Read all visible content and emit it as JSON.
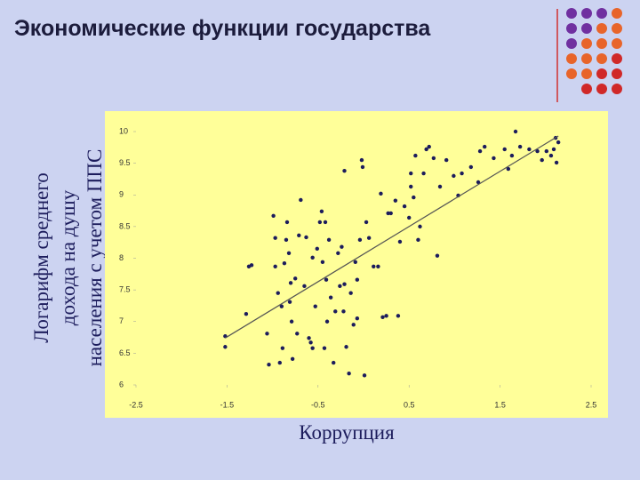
{
  "chart_data": {
    "type": "scatter",
    "title": "Экономические функции государства",
    "xlabel": "Коррупция",
    "ylabel": [
      "Логарифм среднего",
      "дохода на душу",
      "населения с учетом ППС"
    ],
    "color": "#1c1c5c",
    "xlim": [
      -2.5,
      2.5
    ],
    "xticks": [
      -2.5,
      -1.5,
      -0.5,
      0.5,
      1.5,
      2.5
    ],
    "ylim": [
      6,
      10
    ],
    "yticks": [
      6,
      6.5,
      7,
      7.5,
      8,
      8.5,
      9,
      9.5,
      10
    ],
    "x": [
      -1.52,
      -1.52,
      -1.26,
      -1.23,
      -1.29,
      -1.06,
      -1.04,
      -0.99,
      -0.97,
      -0.97,
      -0.94,
      -0.92,
      -0.9,
      -0.89,
      -0.87,
      -0.85,
      -0.84,
      -0.82,
      -0.8,
      -0.81,
      -0.79,
      -0.78,
      -0.75,
      -0.73,
      -0.71,
      -0.69,
      -0.65,
      -0.63,
      -0.6,
      -0.58,
      -0.56,
      -0.53,
      -0.51,
      -0.48,
      -0.46,
      -0.45,
      -0.43,
      -0.41,
      -0.4,
      -0.38,
      -0.36,
      -0.33,
      -0.31,
      -0.28,
      -0.26,
      -0.24,
      -0.22,
      -0.21,
      -0.21,
      -0.19,
      -0.16,
      -0.14,
      -0.11,
      -0.09,
      -0.07,
      -0.04,
      -0.02,
      -0.01,
      0.01,
      0.03,
      0.06,
      0.11,
      0.16,
      0.19,
      0.21,
      0.25,
      0.27,
      0.3,
      0.35,
      0.38,
      0.4,
      0.45,
      0.5,
      0.52,
      0.55,
      0.57,
      0.6,
      0.62,
      0.66,
      0.69,
      0.72,
      0.77,
      0.81,
      0.84,
      0.91,
      0.99,
      1.04,
      1.08,
      1.18,
      1.26,
      1.28,
      1.33,
      1.43,
      1.55,
      1.59,
      1.63,
      1.67,
      1.72,
      1.82,
      1.91,
      1.96,
      2.01,
      2.06,
      2.11,
      2.12,
      2.09,
      2.14,
      0.52,
      -0.56,
      -0.42,
      -0.07
    ],
    "y": [
      6.77,
      6.6,
      7.87,
      7.89,
      7.12,
      6.81,
      6.32,
      8.67,
      8.32,
      7.87,
      7.45,
      6.35,
      7.24,
      6.58,
      7.92,
      8.29,
      8.57,
      8.08,
      7.61,
      7.31,
      7,
      6.41,
      7.68,
      6.81,
      8.36,
      8.92,
      7.56,
      8.33,
      6.74,
      6.67,
      6.58,
      7.24,
      8.15,
      8.57,
      8.74,
      7.94,
      6.58,
      7.66,
      7,
      8.29,
      7.38,
      6.35,
      7.16,
      8.08,
      7.56,
      8.18,
      7.16,
      7.59,
      9.38,
      6.6,
      6.18,
      7.45,
      6.95,
      7.94,
      7.66,
      8.29,
      9.55,
      9.44,
      6.15,
      8.57,
      8.32,
      7.87,
      7.87,
      9.02,
      7.07,
      7.09,
      8.71,
      8.71,
      8.91,
      7.09,
      8.26,
      8.82,
      8.64,
      9.13,
      8.96,
      9.62,
      8.29,
      8.5,
      9.34,
      9.72,
      9.76,
      9.58,
      8.04,
      9.13,
      9.55,
      9.3,
      8.99,
      9.34,
      9.44,
      9.2,
      9.69,
      9.76,
      9.58,
      9.72,
      9.41,
      9.62,
      10,
      9.76,
      9.72,
      9.69,
      9.55,
      9.69,
      9.62,
      9.9,
      9.51,
      9.72,
      9.83,
      9.34,
      8.01,
      8.57,
      7.05
    ],
    "trendline": {
      "x": [
        -1.52,
        2.14
      ],
      "y": [
        6.74,
        9.93
      ]
    }
  }
}
